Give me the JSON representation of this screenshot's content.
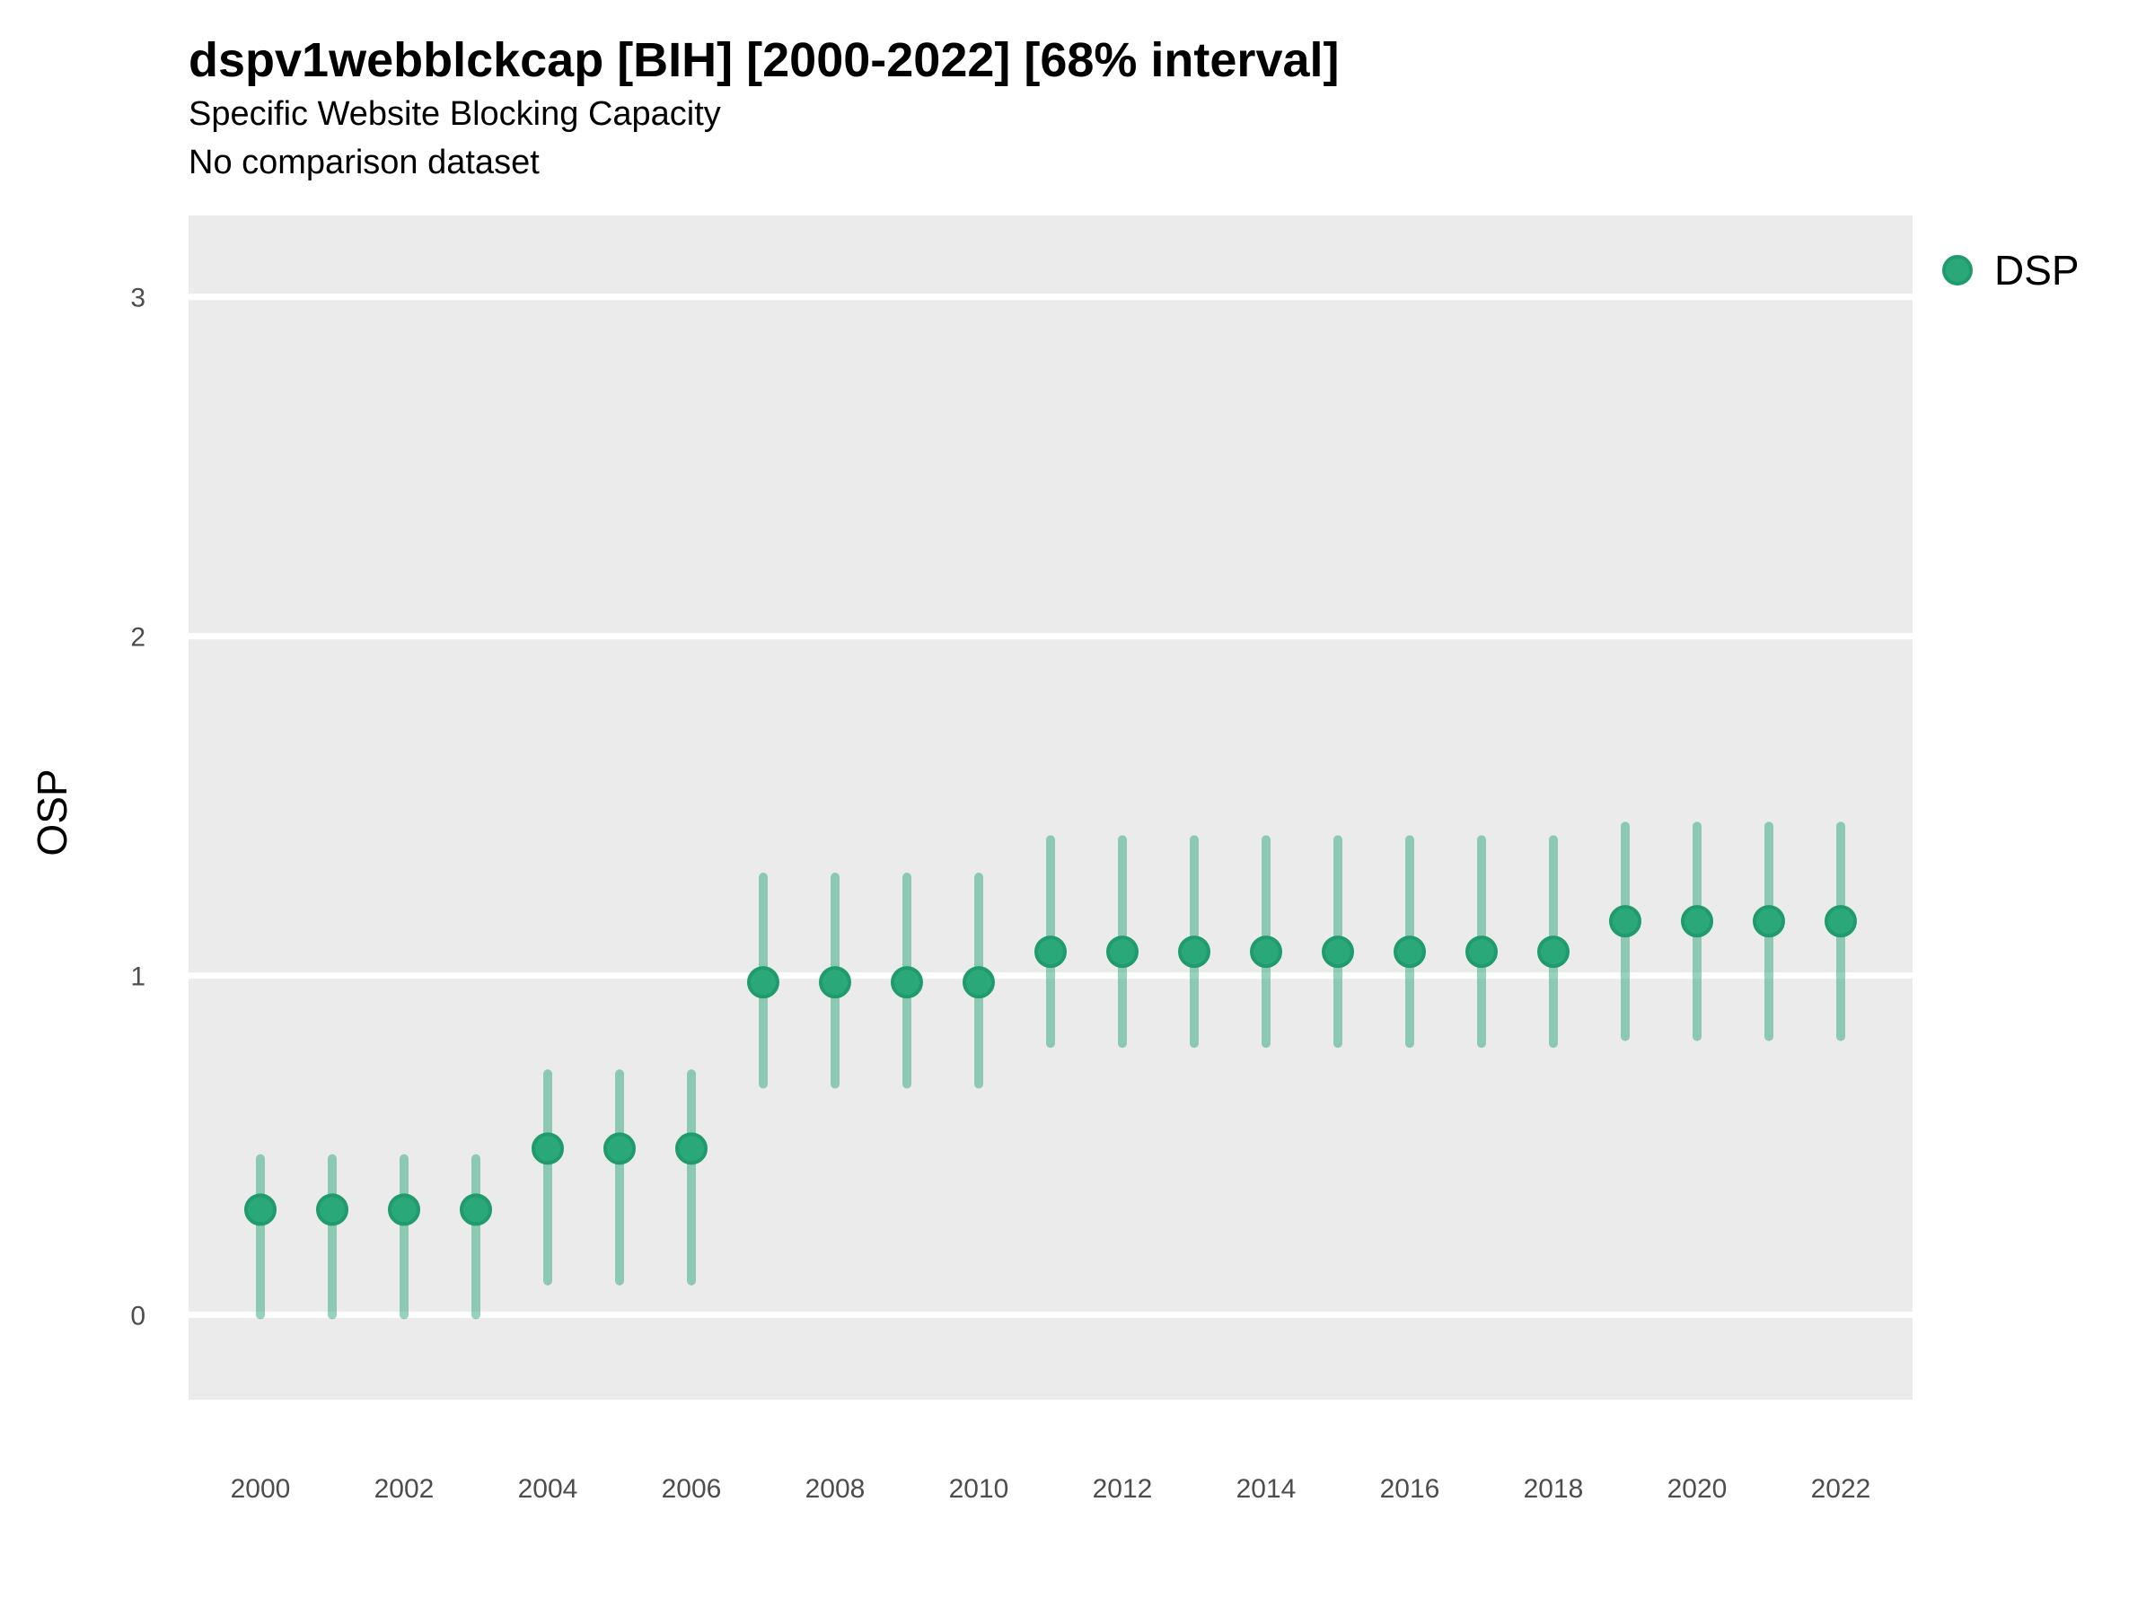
{
  "header": {
    "title": "dspv1webblckcap [BIH] [2000-2022] [68% interval]",
    "subtitle": "Specific Website Blocking Capacity",
    "note": "No comparison dataset"
  },
  "legend": {
    "label": "DSP"
  },
  "colors": {
    "accent": "#2BA87A",
    "accent_dark": "#1F9B6E",
    "errorbar": "rgba(43,168,122,0.5)",
    "panel_bg": "#EBEBEB",
    "grid": "#FFFFFF",
    "axis_text": "#4D4D4D",
    "text": "#000000"
  },
  "chart_data": {
    "type": "scatter",
    "title": "dspv1webblckcap [BIH] [2000-2022] [68% interval]",
    "subtitle": "Specific Website Blocking Capacity",
    "note": "No comparison dataset",
    "xlabel": "",
    "ylabel": "OSP",
    "interval": "68%",
    "grid": "horizontal-major-only",
    "legend_position": "right",
    "xlim": [
      1999,
      2023
    ],
    "ylim": [
      -0.25,
      3.24
    ],
    "x_ticks": [
      2000,
      2002,
      2004,
      2006,
      2008,
      2010,
      2012,
      2014,
      2016,
      2018,
      2020,
      2022
    ],
    "y_ticks": [
      0,
      1,
      2,
      3
    ],
    "series": [
      {
        "name": "DSP",
        "points": [
          {
            "year": 2000,
            "value": 0.31,
            "lower": 0.0,
            "upper": 0.46
          },
          {
            "year": 2001,
            "value": 0.31,
            "lower": 0.0,
            "upper": 0.46
          },
          {
            "year": 2002,
            "value": 0.31,
            "lower": 0.0,
            "upper": 0.46
          },
          {
            "year": 2003,
            "value": 0.31,
            "lower": 0.0,
            "upper": 0.46
          },
          {
            "year": 2004,
            "value": 0.49,
            "lower": 0.1,
            "upper": 0.71
          },
          {
            "year": 2005,
            "value": 0.49,
            "lower": 0.1,
            "upper": 0.71
          },
          {
            "year": 2006,
            "value": 0.49,
            "lower": 0.1,
            "upper": 0.71
          },
          {
            "year": 2007,
            "value": 0.98,
            "lower": 0.68,
            "upper": 1.29
          },
          {
            "year": 2008,
            "value": 0.98,
            "lower": 0.68,
            "upper": 1.29
          },
          {
            "year": 2009,
            "value": 0.98,
            "lower": 0.68,
            "upper": 1.29
          },
          {
            "year": 2010,
            "value": 0.98,
            "lower": 0.68,
            "upper": 1.29
          },
          {
            "year": 2011,
            "value": 1.07,
            "lower": 0.8,
            "upper": 1.4
          },
          {
            "year": 2012,
            "value": 1.07,
            "lower": 0.8,
            "upper": 1.4
          },
          {
            "year": 2013,
            "value": 1.07,
            "lower": 0.8,
            "upper": 1.4
          },
          {
            "year": 2014,
            "value": 1.07,
            "lower": 0.8,
            "upper": 1.4
          },
          {
            "year": 2015,
            "value": 1.07,
            "lower": 0.8,
            "upper": 1.4
          },
          {
            "year": 2016,
            "value": 1.07,
            "lower": 0.8,
            "upper": 1.4
          },
          {
            "year": 2017,
            "value": 1.07,
            "lower": 0.8,
            "upper": 1.4
          },
          {
            "year": 2018,
            "value": 1.07,
            "lower": 0.8,
            "upper": 1.4
          },
          {
            "year": 2019,
            "value": 1.16,
            "lower": 0.82,
            "upper": 1.44
          },
          {
            "year": 2020,
            "value": 1.16,
            "lower": 0.82,
            "upper": 1.44
          },
          {
            "year": 2021,
            "value": 1.16,
            "lower": 0.82,
            "upper": 1.44
          },
          {
            "year": 2022,
            "value": 1.16,
            "lower": 0.82,
            "upper": 1.44
          }
        ]
      }
    ]
  }
}
